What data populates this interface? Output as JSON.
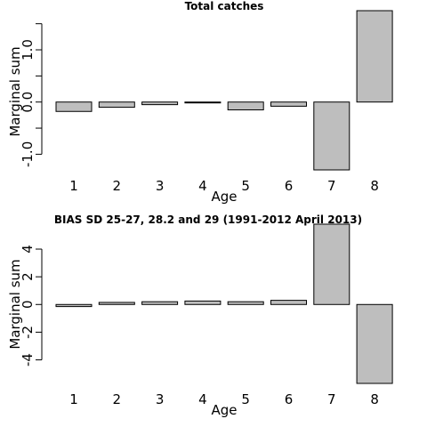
{
  "chart_data": [
    {
      "type": "bar",
      "title": "Total catches",
      "xlabel": "Age",
      "ylabel": "Marginal sum",
      "categories": [
        "1",
        "2",
        "3",
        "4",
        "5",
        "6",
        "7",
        "8"
      ],
      "values": [
        -0.18,
        -0.1,
        -0.05,
        -0.01,
        -0.15,
        -0.08,
        -1.3,
        1.75
      ],
      "ylim": [
        -1.3,
        1.75
      ],
      "yticks": [
        -1.0,
        -0.5,
        0.0,
        0.5,
        1.0,
        1.5
      ],
      "ytick_labels": [
        "-1.0",
        "",
        "0.0",
        "",
        "1.0",
        ""
      ],
      "bar_color": "#bebebe"
    },
    {
      "type": "bar",
      "title": "BIAS SD 25-27, 28.2 and 29 (1991-2012 April 2013)",
      "xlabel": "Age",
      "ylabel": "Marginal sum",
      "categories": [
        "1",
        "2",
        "3",
        "4",
        "5",
        "6",
        "7",
        "8"
      ],
      "values": [
        -0.15,
        0.15,
        0.2,
        0.25,
        0.2,
        0.3,
        5.8,
        -5.7
      ],
      "ylim": [
        -5.7,
        5.8
      ],
      "yticks": [
        -4,
        -2,
        0,
        2,
        4
      ],
      "ytick_labels": [
        "-4",
        "-2",
        "0",
        "2",
        "4"
      ],
      "bar_color": "#bebebe"
    }
  ]
}
